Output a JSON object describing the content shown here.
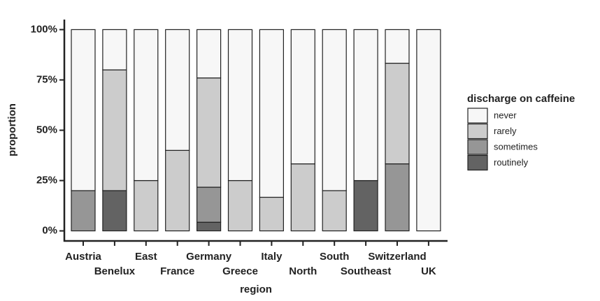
{
  "chart_data": {
    "type": "stacked_bar",
    "x_label": "region",
    "y_label": "proportion",
    "legend_title": "discharge on caffeine",
    "categories": [
      "Austria",
      "Benelux",
      "East",
      "France",
      "Germany",
      "Greece",
      "Italy",
      "North",
      "South",
      "Southeast",
      "Switzerland",
      "UK"
    ],
    "series": [
      {
        "name": "never",
        "color": "#f7f7f7",
        "values": [
          80,
          20,
          75,
          60,
          24,
          75,
          83.3,
          66.7,
          80,
          75,
          16.7,
          100
        ]
      },
      {
        "name": "rarely",
        "color": "#cccccc",
        "values": [
          0,
          60,
          25,
          40,
          54.3,
          25,
          16.7,
          33.3,
          20,
          0,
          50,
          0
        ]
      },
      {
        "name": "sometimes",
        "color": "#969696",
        "values": [
          20,
          0,
          0,
          0,
          17.4,
          0,
          0,
          0,
          0,
          0,
          33.3,
          0
        ]
      },
      {
        "name": "routinely",
        "color": "#636363",
        "values": [
          0,
          20,
          0,
          0,
          4.3,
          0,
          0,
          0,
          0,
          25,
          0,
          0
        ]
      }
    ],
    "ylim": [
      -5,
      105
    ],
    "yticks": [
      {
        "value": 0,
        "label": "0%"
      },
      {
        "value": 25,
        "label": "25%"
      },
      {
        "value": 50,
        "label": "50%"
      },
      {
        "value": 75,
        "label": "75%"
      },
      {
        "value": 100,
        "label": "100%"
      }
    ],
    "legend_position": "right"
  }
}
